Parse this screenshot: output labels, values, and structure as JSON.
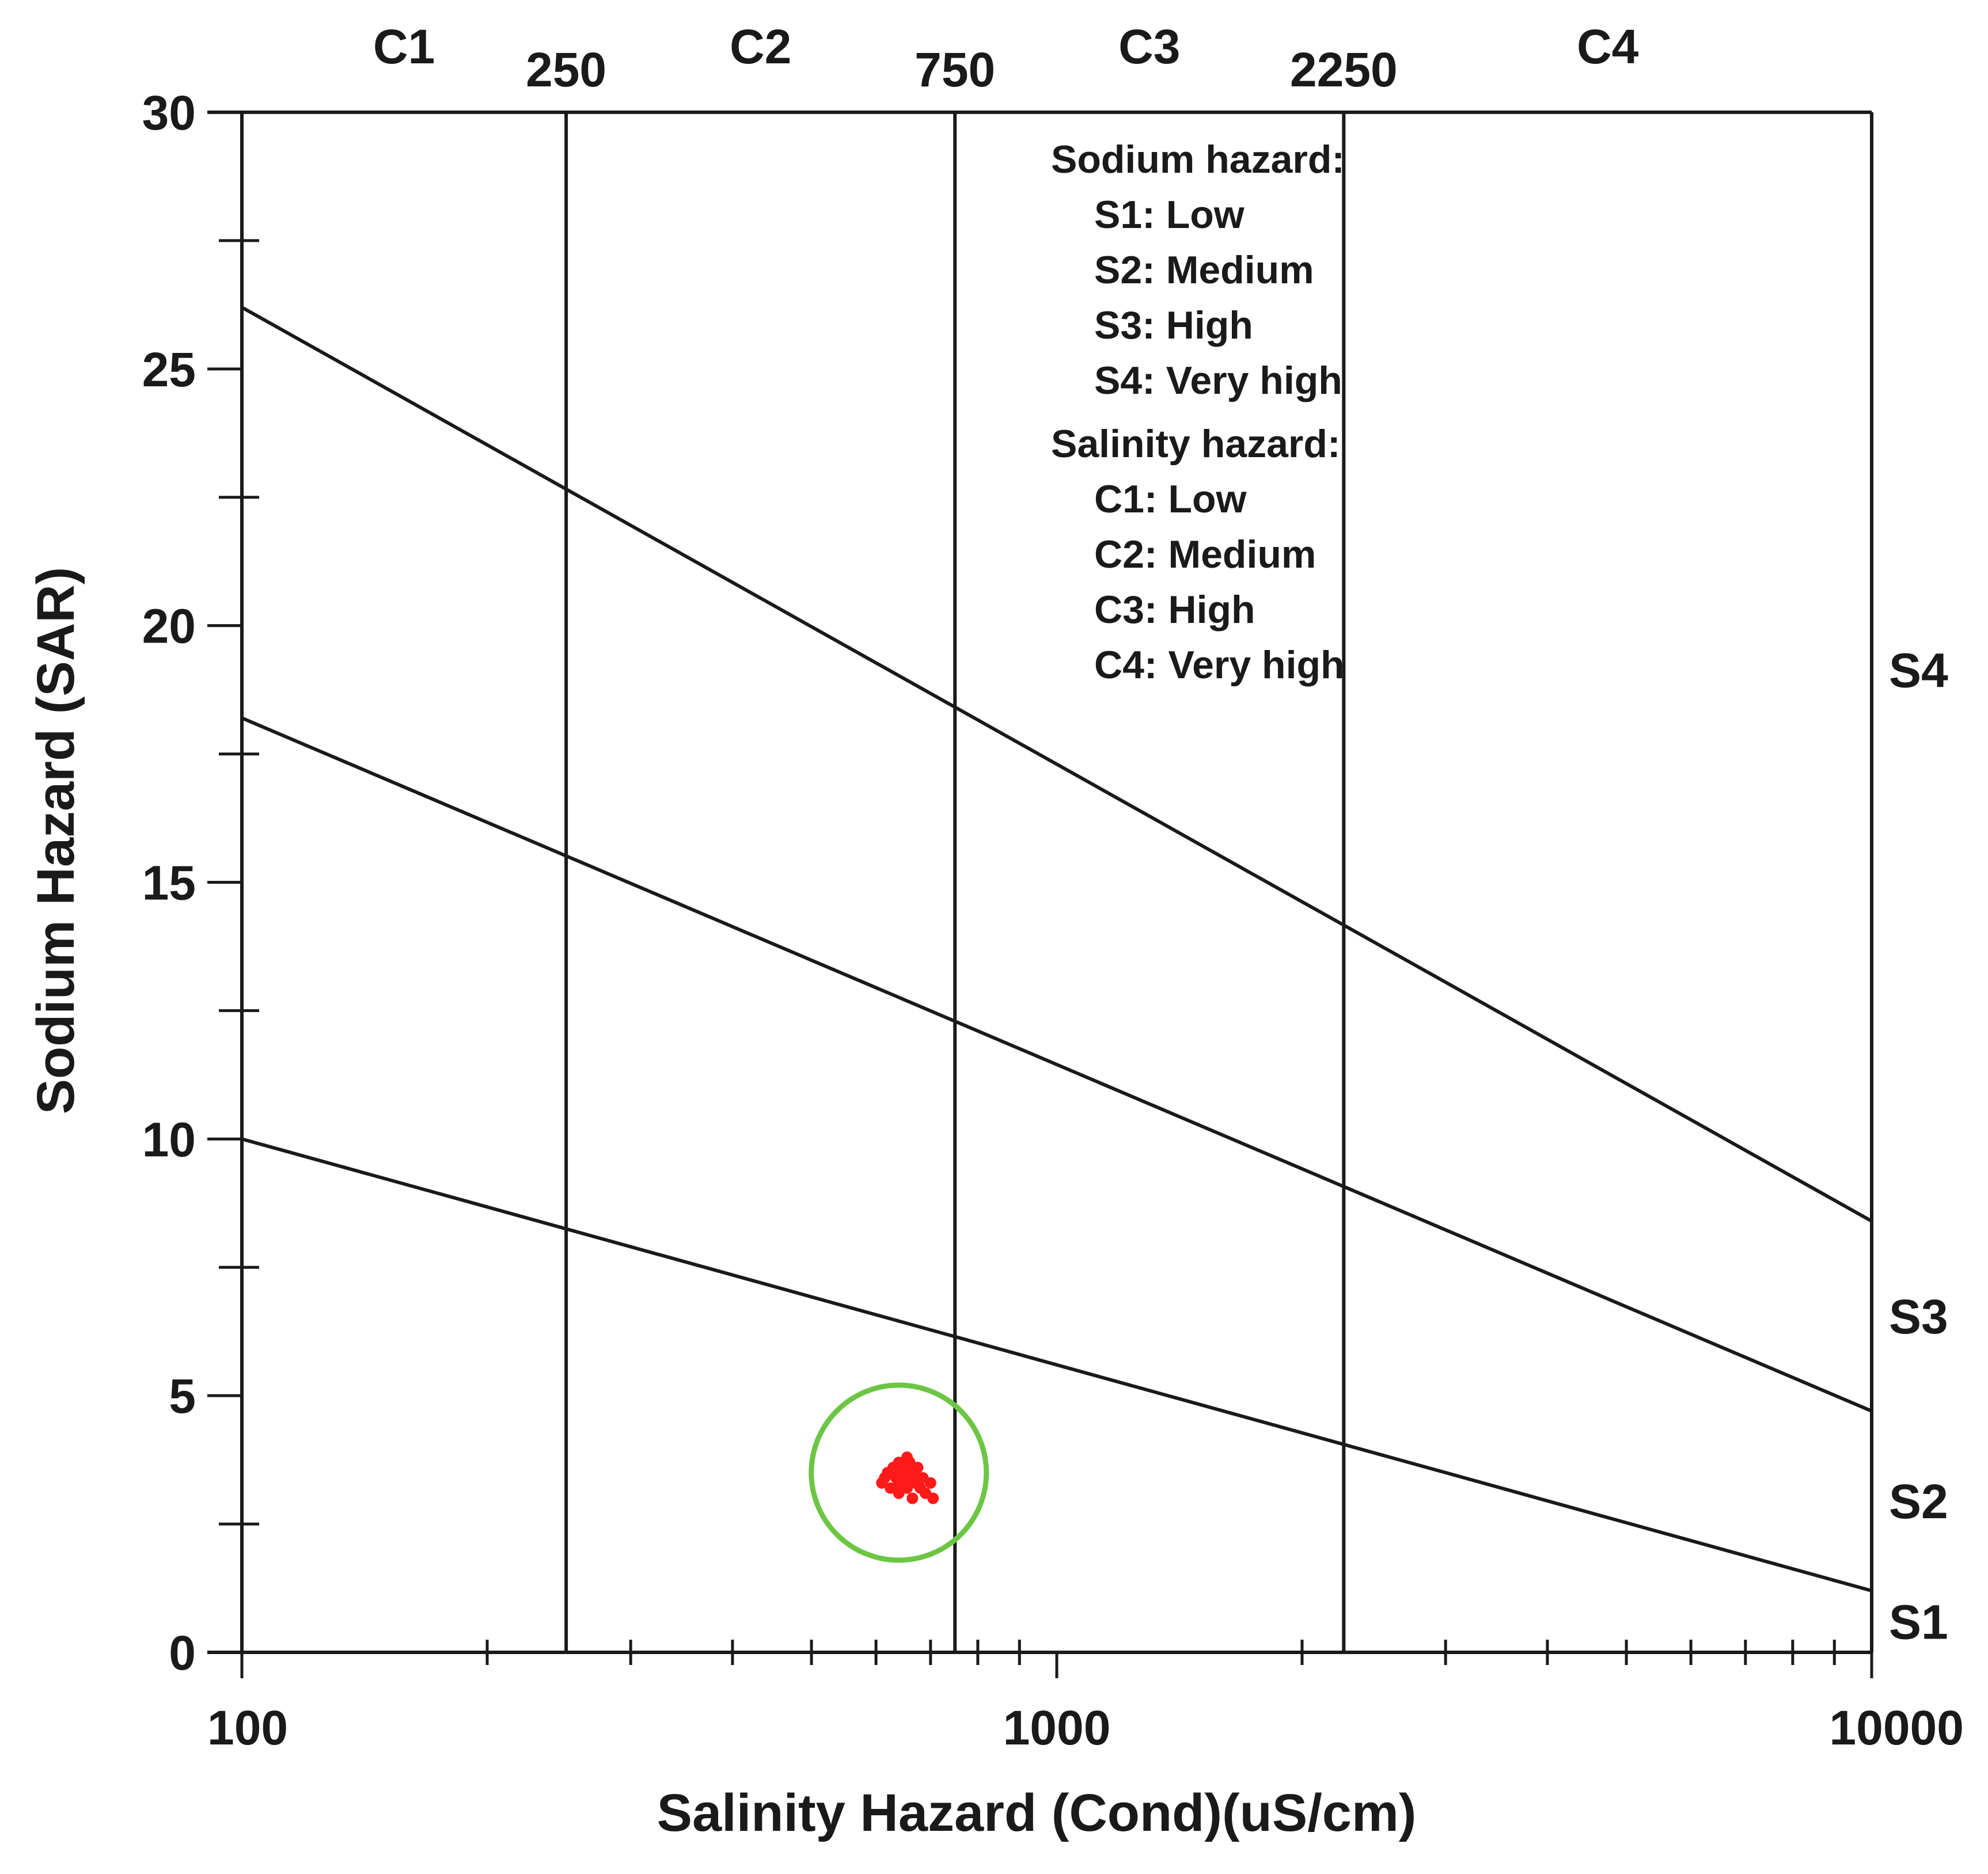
{
  "chart_data": {
    "type": "scatter",
    "title": "",
    "xlabel": "Salinity Hazard (Cond)(uS/cm)",
    "ylabel": "Sodium Hazard (SAR)",
    "x_scale": "log",
    "xlim": [
      100,
      10000
    ],
    "ylim": [
      0,
      30
    ],
    "x_ticks": [
      100,
      1000,
      10000
    ],
    "x_tick_labels": [
      "100",
      "1000",
      "10000"
    ],
    "x_minor_ticks": [
      200,
      300,
      400,
      500,
      600,
      700,
      800,
      900,
      2000,
      3000,
      4000,
      5000,
      6000,
      7000,
      8000,
      9000
    ],
    "y_ticks": [
      0,
      5,
      10,
      15,
      20,
      25,
      30
    ],
    "y_tick_labels": [
      "0",
      "5",
      "10",
      "15",
      "20",
      "25",
      "30"
    ],
    "y_minor_ticks": [
      2.5,
      7.5,
      12.5,
      17.5,
      22.5,
      27.5
    ],
    "grid": false,
    "salinity_boundaries": [
      {
        "x": 250,
        "label": "250"
      },
      {
        "x": 750,
        "label": "750"
      },
      {
        "x": 2250,
        "label": "2250"
      }
    ],
    "salinity_classes": [
      "C1",
      "C2",
      "C3",
      "C4"
    ],
    "sodium_boundaries": [
      {
        "x": [
          100,
          10000
        ],
        "y": [
          10,
          1.2
        ]
      },
      {
        "x": [
          100,
          10000
        ],
        "y": [
          18.2,
          4.7
        ]
      },
      {
        "x": [
          100,
          10000
        ],
        "y": [
          26.2,
          8.4
        ]
      }
    ],
    "sodium_classes": [
      "S1",
      "S2",
      "S3",
      "S4"
    ],
    "legend": {
      "placement": "top-center",
      "sodium_title": "Sodium hazard:",
      "sodium_items": [
        "S1: Low",
        "S2: Medium",
        "S3: High",
        "S4: Very high"
      ],
      "salinity_title": "Salinity hazard:",
      "salinity_items": [
        "C1: Low",
        "C2: Medium",
        "C3: High",
        "C4: Very high"
      ]
    },
    "cluster_highlight": {
      "x": 640,
      "y": 3.5,
      "color": "#6cc644"
    },
    "points_color": "#ff1a1a",
    "points": [
      {
        "x": 610,
        "y": 3.3
      },
      {
        "x": 620,
        "y": 3.5
      },
      {
        "x": 625,
        "y": 3.2
      },
      {
        "x": 630,
        "y": 3.6
      },
      {
        "x": 635,
        "y": 3.4
      },
      {
        "x": 640,
        "y": 3.7
      },
      {
        "x": 640,
        "y": 3.1
      },
      {
        "x": 645,
        "y": 3.5
      },
      {
        "x": 650,
        "y": 3.3
      },
      {
        "x": 650,
        "y": 3.6
      },
      {
        "x": 655,
        "y": 3.2
      },
      {
        "x": 660,
        "y": 3.4
      },
      {
        "x": 660,
        "y": 3.7
      },
      {
        "x": 665,
        "y": 3.0
      },
      {
        "x": 670,
        "y": 3.5
      },
      {
        "x": 670,
        "y": 3.3
      },
      {
        "x": 675,
        "y": 3.6
      },
      {
        "x": 680,
        "y": 3.2
      },
      {
        "x": 685,
        "y": 3.4
      },
      {
        "x": 690,
        "y": 3.1
      },
      {
        "x": 700,
        "y": 3.3
      },
      {
        "x": 705,
        "y": 3.0
      },
      {
        "x": 615,
        "y": 3.4
      },
      {
        "x": 655,
        "y": 3.8
      },
      {
        "x": 635,
        "y": 3.2
      },
      {
        "x": 665,
        "y": 3.5
      }
    ]
  }
}
